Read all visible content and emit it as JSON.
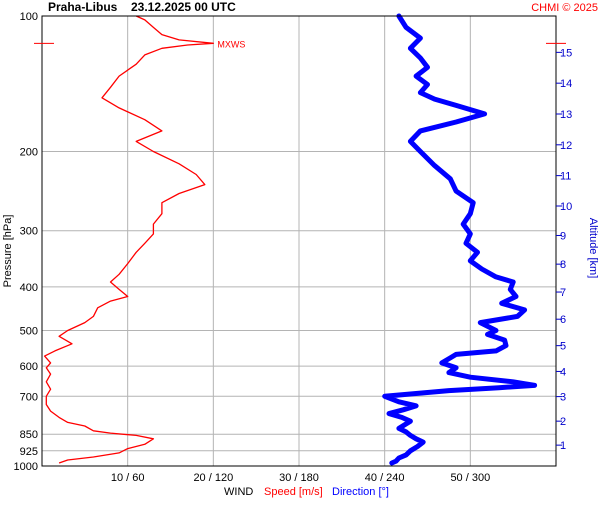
{
  "header": {
    "station": "Praha-Libus",
    "datetime": "23.12.2025 00 UTC",
    "credit": "CHMI © 2025"
  },
  "chart_data": {
    "type": "line",
    "ylabel": "Pressure [hPa]",
    "ylabel_right": "Altitude [km]",
    "xlabel": {
      "prefix": "WIND",
      "speed": "Speed [m/s]",
      "direction": "Direction [°]"
    },
    "pressure_ticks": [
      "100",
      "200",
      "300",
      "400",
      "500",
      "600",
      "700",
      "850",
      "925",
      "1000"
    ],
    "altitude_ticks": [
      "1",
      "2",
      "3",
      "4",
      "5",
      "6",
      "7",
      "8",
      "9",
      "10",
      "11",
      "12",
      "13",
      "14",
      "15"
    ],
    "x_ticks": [
      "10 / 60",
      "20 / 120",
      "30 / 180",
      "40 / 240",
      "50 / 300"
    ],
    "xlim_speed": [
      0,
      60
    ],
    "xlim_direction": [
      0,
      360
    ],
    "ylim_pressure": [
      1000,
      100
    ],
    "y_scale": "log",
    "grid": true,
    "mxws_label": "MXWS",
    "mxws": {
      "speed": 20,
      "pressure": 115
    },
    "colors": {
      "speed": "#ff0000",
      "direction": "#0000ff",
      "grid": "#b4b4b4",
      "right_axis": "#0000cc"
    },
    "series": [
      {
        "name": "Speed [m/s]",
        "points": [
          [
            2,
            985
          ],
          [
            3,
            970
          ],
          [
            6,
            955
          ],
          [
            9,
            935
          ],
          [
            10,
            915
          ],
          [
            12,
            895
          ],
          [
            13,
            870
          ],
          [
            11,
            855
          ],
          [
            8,
            845
          ],
          [
            6,
            835
          ],
          [
            5,
            815
          ],
          [
            3,
            800
          ],
          [
            2,
            780
          ],
          [
            1,
            755
          ],
          [
            0.5,
            730
          ],
          [
            0.5,
            700
          ],
          [
            1,
            675
          ],
          [
            0.5,
            650
          ],
          [
            1,
            625
          ],
          [
            0.5,
            605
          ],
          [
            1,
            590
          ],
          [
            0.3,
            570
          ],
          [
            1.5,
            555
          ],
          [
            3.5,
            535
          ],
          [
            2,
            515
          ],
          [
            3,
            500
          ],
          [
            5,
            480
          ],
          [
            6,
            465
          ],
          [
            6.5,
            445
          ],
          [
            8,
            430
          ],
          [
            10,
            420
          ],
          [
            9,
            405
          ],
          [
            8,
            390
          ],
          [
            9,
            375
          ],
          [
            10,
            355
          ],
          [
            11,
            335
          ],
          [
            12,
            320
          ],
          [
            13,
            305
          ],
          [
            13,
            290
          ],
          [
            14,
            275
          ],
          [
            14,
            260
          ],
          [
            16,
            248
          ],
          [
            19,
            237
          ],
          [
            18,
            225
          ],
          [
            16,
            213
          ],
          [
            13,
            200
          ],
          [
            11,
            190
          ],
          [
            14,
            180
          ],
          [
            12,
            170
          ],
          [
            9,
            160
          ],
          [
            7,
            152
          ],
          [
            8,
            144
          ],
          [
            9,
            136
          ],
          [
            11,
            128
          ],
          [
            12,
            122
          ],
          [
            14,
            118
          ],
          [
            17,
            116
          ],
          [
            20,
            115
          ],
          [
            16,
            113
          ],
          [
            14,
            110
          ],
          [
            13,
            106
          ],
          [
            12,
            102
          ],
          [
            11,
            100
          ]
        ]
      },
      {
        "name": "Direction [°]",
        "points": [
          [
            245,
            985
          ],
          [
            248,
            975
          ],
          [
            250,
            960
          ],
          [
            255,
            945
          ],
          [
            258,
            925
          ],
          [
            263,
            905
          ],
          [
            267,
            885
          ],
          [
            262,
            870
          ],
          [
            258,
            855
          ],
          [
            255,
            840
          ],
          [
            250,
            825
          ],
          [
            254,
            810
          ],
          [
            258,
            795
          ],
          [
            252,
            780
          ],
          [
            243,
            765
          ],
          [
            253,
            750
          ],
          [
            262,
            735
          ],
          [
            250,
            720
          ],
          [
            240,
            700
          ],
          [
            262,
            690
          ],
          [
            285,
            680
          ],
          [
            320,
            670
          ],
          [
            345,
            662
          ],
          [
            330,
            650
          ],
          [
            300,
            635
          ],
          [
            285,
            620
          ],
          [
            290,
            605
          ],
          [
            280,
            590
          ],
          [
            286,
            575
          ],
          [
            290,
            565
          ],
          [
            318,
            555
          ],
          [
            325,
            540
          ],
          [
            324,
            525
          ],
          [
            312,
            510
          ],
          [
            318,
            500
          ],
          [
            307,
            480
          ],
          [
            333,
            465
          ],
          [
            338,
            450
          ],
          [
            322,
            435
          ],
          [
            332,
            420
          ],
          [
            328,
            405
          ],
          [
            330,
            390
          ],
          [
            318,
            380
          ],
          [
            308,
            365
          ],
          [
            300,
            350
          ],
          [
            305,
            335
          ],
          [
            297,
            320
          ],
          [
            300,
            305
          ],
          [
            295,
            290
          ],
          [
            300,
            275
          ],
          [
            302,
            260
          ],
          [
            290,
            245
          ],
          [
            286,
            230
          ],
          [
            275,
            215
          ],
          [
            265,
            200
          ],
          [
            258,
            190
          ],
          [
            265,
            180
          ],
          [
            290,
            172
          ],
          [
            310,
            165
          ],
          [
            290,
            158
          ],
          [
            275,
            153
          ],
          [
            265,
            148
          ],
          [
            270,
            142
          ],
          [
            262,
            136
          ],
          [
            270,
            130
          ],
          [
            265,
            124
          ],
          [
            258,
            118
          ],
          [
            265,
            112
          ],
          [
            255,
            106
          ],
          [
            250,
            100
          ]
        ]
      }
    ]
  }
}
